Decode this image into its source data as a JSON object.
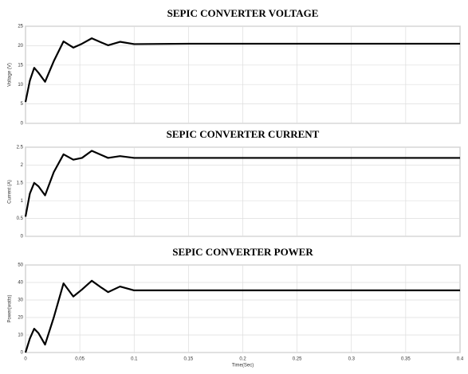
{
  "chart_data": [
    {
      "type": "line",
      "title": "SEPIC CONVERTER VOLTAGE",
      "y_label": "Voltage (V)",
      "x": [
        0,
        0.004,
        0.008,
        0.012,
        0.018,
        0.026,
        0.035,
        0.044,
        0.052,
        0.061,
        0.07,
        0.076,
        0.087,
        0.1,
        0.15,
        0.2,
        0.25,
        0.3,
        0.35,
        0.4
      ],
      "series": [
        {
          "color": "#000000",
          "values": [
            5.5,
            11,
            14.3,
            13,
            10.7,
            16,
            21.1,
            19.5,
            20.5,
            21.9,
            20.8,
            20.1,
            21,
            20.4,
            20.5,
            20.5,
            20.5,
            20.5,
            20.5,
            20.5
          ]
        }
      ],
      "xlim": [
        0,
        0.4
      ],
      "xticks": [
        0,
        0.05,
        0.1,
        0.15,
        0.2,
        0.25,
        0.3,
        0.35,
        0.4
      ],
      "ylim": [
        0,
        25
      ],
      "yticks": [
        0,
        5,
        10,
        15,
        20,
        25
      ],
      "grid": true
    },
    {
      "type": "line",
      "title": "SEPIC CONVERTER CURRENT",
      "y_label": "Current (A)",
      "x": [
        0,
        0.004,
        0.008,
        0.012,
        0.018,
        0.026,
        0.035,
        0.044,
        0.052,
        0.061,
        0.07,
        0.076,
        0.087,
        0.1,
        0.15,
        0.2,
        0.25,
        0.3,
        0.35,
        0.4
      ],
      "series": [
        {
          "color": "#000000",
          "values": [
            0.55,
            1.2,
            1.5,
            1.4,
            1.15,
            1.8,
            2.3,
            2.15,
            2.2,
            2.4,
            2.28,
            2.2,
            2.25,
            2.2,
            2.2,
            2.2,
            2.2,
            2.2,
            2.2,
            2.2
          ]
        }
      ],
      "xlim": [
        0,
        0.4
      ],
      "xticks": [
        0,
        0.05,
        0.1,
        0.15,
        0.2,
        0.25,
        0.3,
        0.35,
        0.4
      ],
      "ylim": [
        0,
        2.5
      ],
      "yticks": [
        0,
        0.5,
        1,
        1.5,
        2,
        2.5
      ],
      "grid": true
    },
    {
      "type": "line",
      "title": "SEPIC CONVERTER POWER",
      "y_label": "Power(watts)",
      "x_label": "Time(Sec)",
      "x": [
        0,
        0.004,
        0.008,
        0.012,
        0.018,
        0.026,
        0.035,
        0.044,
        0.052,
        0.061,
        0.07,
        0.076,
        0.087,
        0.1,
        0.15,
        0.2,
        0.25,
        0.3,
        0.35,
        0.4
      ],
      "series": [
        {
          "color": "#000000",
          "values": [
            0,
            8,
            13.6,
            11,
            4.5,
            20,
            39.5,
            32,
            36,
            41,
            37,
            34.5,
            37.7,
            35.5,
            35.5,
            35.5,
            35.5,
            35.5,
            35.5,
            35.5
          ]
        }
      ],
      "xlim": [
        0,
        0.4
      ],
      "xticks": [
        0,
        0.05,
        0.1,
        0.15,
        0.2,
        0.25,
        0.3,
        0.35,
        0.4
      ],
      "ylim": [
        0,
        50
      ],
      "yticks": [
        0,
        10,
        20,
        30,
        40,
        50
      ],
      "grid": true
    }
  ]
}
